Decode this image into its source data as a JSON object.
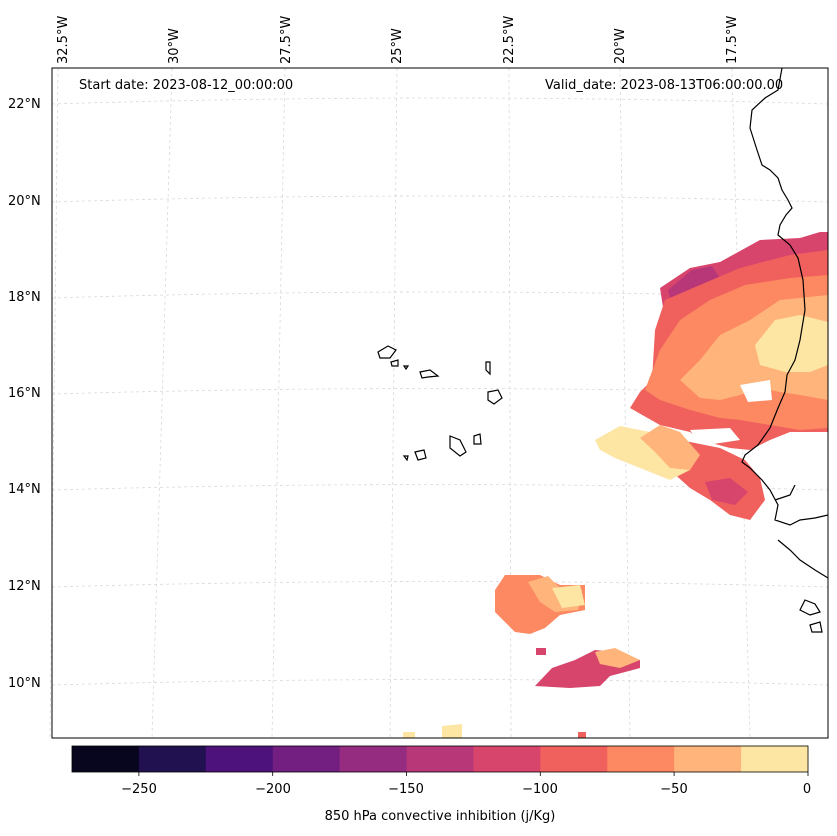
{
  "header": {
    "start_date": "Start date: 2023-08-12_00:00:00",
    "valid_date": "Valid_date: 2023-08-13T06:00:00.00"
  },
  "lon_labels": [
    "32.5°W",
    "30°W",
    "27.5°W",
    "25°W",
    "22.5°W",
    "20°W",
    "17.5°W"
  ],
  "lat_labels": [
    "22°N",
    "20°N",
    "18°N",
    "16°N",
    "14°N",
    "12°N",
    "10°N"
  ],
  "colorbar": {
    "label": "850 hPa convective inhibition (j/Kg)",
    "ticks": [
      "−250",
      "−200",
      "−150",
      "−100",
      "−50",
      "0"
    ],
    "colors": [
      "#08061e",
      "#221150",
      "#4d127b",
      "#721f81",
      "#952c80",
      "#b73779",
      "#d8456c",
      "#f0605d",
      "#fc8961",
      "#feb47b",
      "#fde5a4"
    ]
  },
  "chart_data": {
    "type": "heatmap",
    "title": "850 hPa convective inhibition",
    "units": "j/Kg",
    "range": [
      -275,
      0
    ],
    "levels": [
      -275,
      -250,
      -225,
      -200,
      -175,
      -150,
      -125,
      -100,
      -75,
      -50,
      -25,
      0
    ],
    "lon_range": [
      "32.5°W",
      "16°W"
    ],
    "lat_range": [
      "9°N",
      "22.5°N"
    ]
  }
}
